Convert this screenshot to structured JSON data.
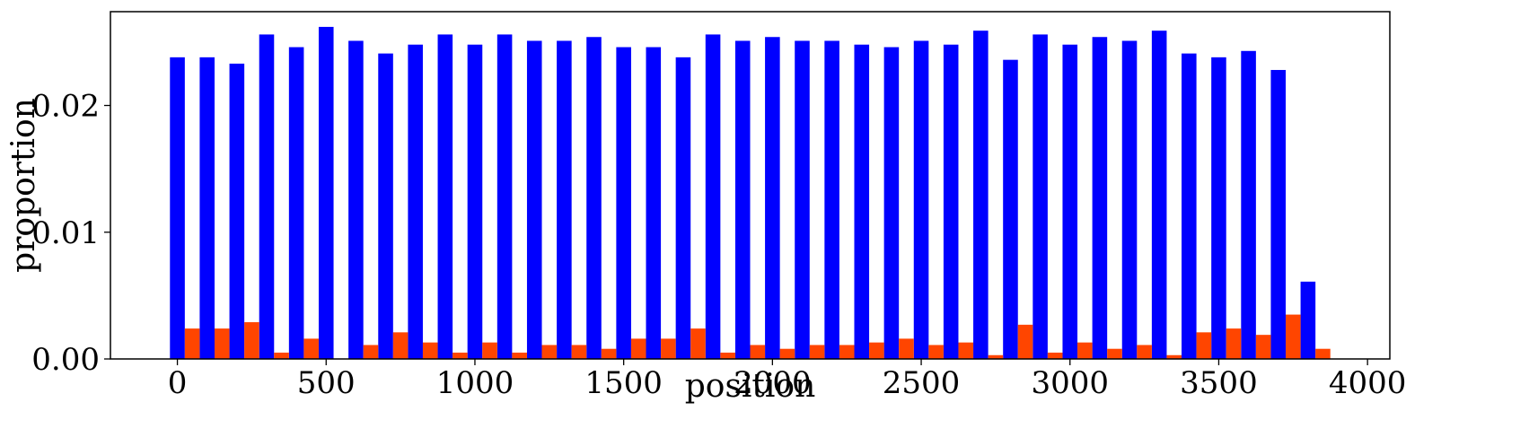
{
  "chart_data": {
    "type": "bar",
    "xlabel": "position",
    "ylabel": "proportion",
    "xlim": [
      -225,
      4075
    ],
    "ylim": [
      0,
      0.0274
    ],
    "grid": false,
    "xticks": [
      0,
      500,
      1000,
      1500,
      2000,
      2500,
      3000,
      3500,
      4000
    ],
    "yticks": [
      0.0,
      0.01,
      0.02
    ],
    "ytick_labels": [
      "0.00",
      "0.01",
      "0.02"
    ],
    "bin_width": 100,
    "bin_starts": [
      0,
      100,
      200,
      300,
      400,
      500,
      600,
      700,
      800,
      900,
      1000,
      1100,
      1200,
      1300,
      1400,
      1500,
      1600,
      1700,
      1800,
      1900,
      2000,
      2100,
      2200,
      2300,
      2400,
      2500,
      2600,
      2700,
      2800,
      2900,
      3000,
      3100,
      3200,
      3300,
      3400,
      3500,
      3600,
      3700,
      3800
    ],
    "series": [
      {
        "color": "#0000ff",
        "values": [
          0.0238,
          0.0238,
          0.0233,
          0.0256,
          0.0246,
          0.0262,
          0.0251,
          0.0241,
          0.0248,
          0.0256,
          0.0248,
          0.0256,
          0.0251,
          0.0251,
          0.0254,
          0.0246,
          0.0246,
          0.0238,
          0.0256,
          0.0251,
          0.0254,
          0.0251,
          0.0251,
          0.0248,
          0.0246,
          0.0251,
          0.0248,
          0.0259,
          0.0236,
          0.0256,
          0.0248,
          0.0254,
          0.0251,
          0.0259,
          0.0241,
          0.0238,
          0.0243,
          0.0228,
          0.0061
        ]
      },
      {
        "color": "#ff4500",
        "values": [
          0.0024,
          0.0024,
          0.0029,
          0.0005,
          0.0016,
          0.0,
          0.0011,
          0.0021,
          0.0013,
          0.0005,
          0.0013,
          0.0005,
          0.0011,
          0.0011,
          0.0008,
          0.0016,
          0.0016,
          0.0024,
          0.0005,
          0.0011,
          0.0008,
          0.0011,
          0.0011,
          0.0013,
          0.0016,
          0.0011,
          0.0013,
          0.0003,
          0.0027,
          0.0005,
          0.0013,
          0.0008,
          0.0011,
          0.0003,
          0.0021,
          0.0024,
          0.0019,
          0.0035,
          0.0008
        ]
      }
    ]
  }
}
